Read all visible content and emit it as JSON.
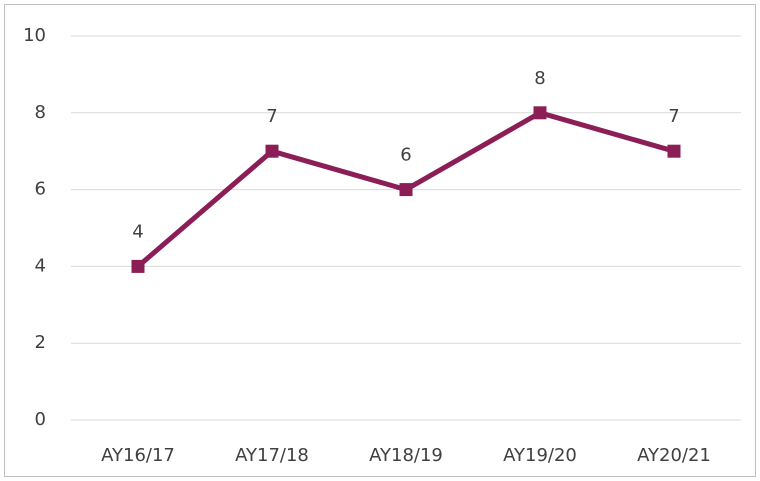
{
  "chart_data": {
    "type": "line",
    "categories": [
      "AY16/17",
      "AY17/18",
      "AY18/19",
      "AY19/20",
      "AY20/21"
    ],
    "values": [
      4,
      7,
      6,
      8,
      7
    ],
    "color": "#8b1e57",
    "ylim": [
      0,
      10
    ],
    "yticks": [
      0,
      2,
      4,
      6,
      8,
      10
    ],
    "grid": true,
    "data_labels": true
  }
}
